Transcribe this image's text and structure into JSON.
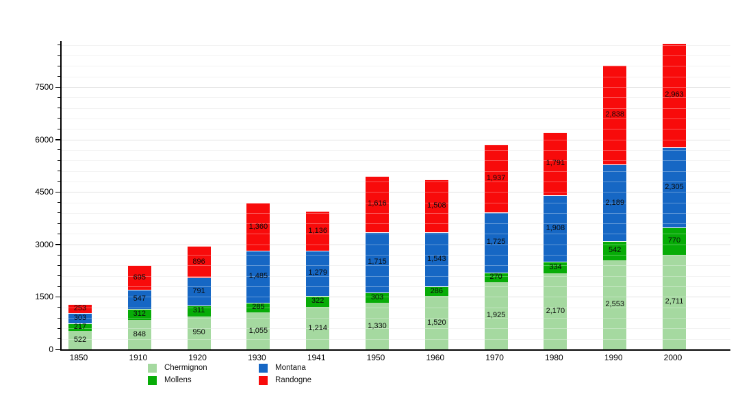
{
  "chart_data": {
    "type": "bar",
    "stacked": true,
    "title": "",
    "xlabel": "",
    "ylabel": "",
    "categories": [
      "1850",
      "1910",
      "1920",
      "1930",
      "1941",
      "1950",
      "1960",
      "1970",
      "1980",
      "1990",
      "2000"
    ],
    "series": [
      {
        "name": "Chermignon",
        "color": "#a5d9a0",
        "values": [
          522,
          848,
          950,
          1055,
          1214,
          1330,
          1520,
          1925,
          2170,
          2553,
          2711
        ]
      },
      {
        "name": "Mollens",
        "color": "#07ac07",
        "values": [
          217,
          312,
          311,
          285,
          322,
          303,
          286,
          270,
          334,
          542,
          770
        ]
      },
      {
        "name": "Montana",
        "color": "#1667c4",
        "values": [
          303,
          547,
          791,
          1485,
          1279,
          1715,
          1543,
          1725,
          1908,
          2189,
          2305
        ]
      },
      {
        "name": "Randogne",
        "color": "#f80b0b",
        "values": [
          253,
          695,
          896,
          1360,
          1136,
          1616,
          1508,
          1937,
          1791,
          2838,
          2963
        ]
      }
    ],
    "y_axis": {
      "min": 0,
      "max": 8810,
      "major_tick_labels": [
        "0",
        "1500",
        "3000",
        "4500",
        "6000",
        "7500"
      ],
      "major_step": 1500,
      "minor_step": 300
    },
    "grid": true,
    "value_labels": "inside-segments, thousands comma-separated",
    "legend_position": "bottom",
    "legend_columns": [
      [
        "Chermignon",
        "Mollens"
      ],
      [
        "Montana",
        "Randogne"
      ]
    ]
  }
}
